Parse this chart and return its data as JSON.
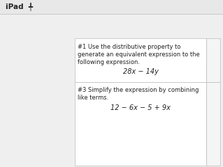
{
  "bg_color": "#efefef",
  "header_color": "#e8e8e8",
  "white": "#ffffff",
  "right_col_color": "#f5f5f5",
  "line_color": "#bbbbbb",
  "text_color": "#222222",
  "header_text": "iPad",
  "header_font_size": 7.5,
  "text_font_size": 6.0,
  "formula_font_size": 7.0,
  "cell1_line1": "#1 Use the distributive property to",
  "cell1_line2": "generate an equivalent expression to the",
  "cell1_line3": "following expression.",
  "cell1_formula": "28x − 14y",
  "cell3_line1": "#3 Simplify the expression by combining",
  "cell3_line2": "like terms.",
  "cell3_formula": "12 − 6x − 5 + 9x",
  "fig_w": 3.19,
  "fig_h": 2.4,
  "dpi": 100
}
